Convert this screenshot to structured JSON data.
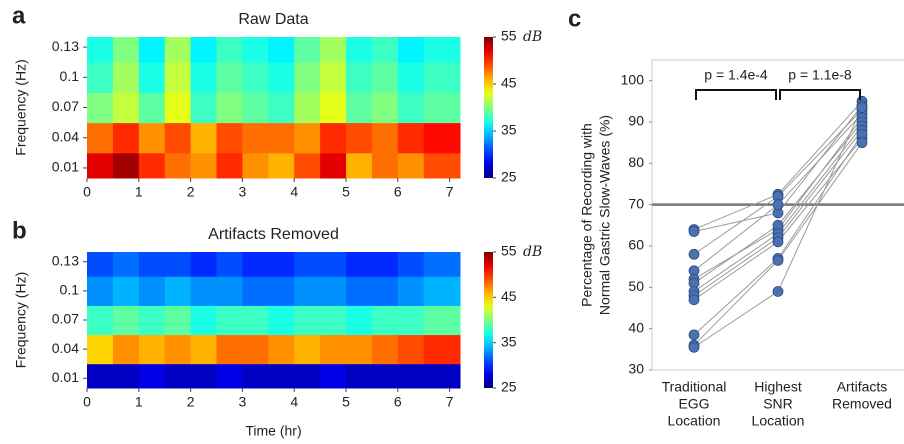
{
  "chart_data": [
    {
      "type": "heatmap",
      "panel": "a",
      "title": "Raw Data",
      "ylabel": "Frequency (Hz)",
      "x": [
        0.25,
        0.75,
        1.25,
        1.75,
        2.25,
        2.75,
        3.25,
        3.75,
        4.25,
        4.75,
        5.25,
        5.75,
        6.25,
        6.75
      ],
      "y": [
        0.01,
        0.04,
        0.07,
        0.1,
        0.13
      ],
      "values": [
        [
          52,
          54,
          50,
          48,
          47,
          50,
          47,
          46,
          49,
          52,
          46,
          48,
          47,
          49
        ],
        [
          48,
          50,
          47,
          49,
          46,
          49,
          48,
          48,
          47,
          50,
          49,
          48,
          50,
          51
        ],
        [
          40,
          42,
          39,
          43,
          38,
          40,
          39,
          38,
          41,
          43,
          39,
          40,
          38,
          39
        ],
        [
          38,
          41,
          37,
          42,
          37,
          39,
          38,
          37,
          40,
          42,
          38,
          39,
          37,
          38
        ],
        [
          37,
          40,
          36,
          41,
          36,
          38,
          37,
          36,
          39,
          41,
          37,
          38,
          36,
          37
        ]
      ],
      "xlim": [
        0,
        7.2
      ],
      "xticks": [
        0,
        1,
        2,
        3,
        4,
        5,
        6,
        7
      ],
      "ylim": [
        0,
        0.14
      ],
      "yticks": [
        0.01,
        0.04,
        0.07,
        0.1,
        0.13
      ],
      "clim": [
        25,
        55
      ],
      "cticks": [
        25,
        35,
        45,
        55
      ],
      "cunit": "dB",
      "colormap": "jet"
    },
    {
      "type": "heatmap",
      "panel": "b",
      "title": "Artifacts Removed",
      "ylabel": "Frequency (Hz)",
      "xlabel": "Time (hr)",
      "x": [
        0.25,
        0.75,
        1.25,
        1.75,
        2.25,
        2.75,
        3.25,
        3.75,
        4.25,
        4.75,
        5.25,
        5.75,
        6.25,
        6.75
      ],
      "y": [
        0.01,
        0.04,
        0.07,
        0.1,
        0.13
      ],
      "values": [
        [
          27,
          27,
          28,
          27,
          27,
          28,
          27,
          27,
          27,
          28,
          27,
          27,
          27,
          27
        ],
        [
          45,
          47,
          46,
          47,
          46,
          48,
          48,
          47,
          46,
          47,
          47,
          48,
          49,
          50
        ],
        [
          38,
          39,
          38,
          39,
          37,
          38,
          38,
          37,
          38,
          38,
          37,
          38,
          38,
          39
        ],
        [
          33,
          34,
          33,
          34,
          33,
          33,
          32,
          32,
          33,
          33,
          32,
          32,
          33,
          34
        ],
        [
          31,
          32,
          31,
          31,
          30,
          31,
          30,
          30,
          31,
          31,
          30,
          30,
          31,
          32
        ]
      ],
      "xlim": [
        0,
        7.2
      ],
      "xticks": [
        0,
        1,
        2,
        3,
        4,
        5,
        6,
        7
      ],
      "ylim": [
        0,
        0.14
      ],
      "yticks": [
        0.01,
        0.04,
        0.07,
        0.1,
        0.13
      ],
      "clim": [
        25,
        55
      ],
      "cticks": [
        25,
        35,
        45,
        55
      ],
      "cunit": "dB",
      "colormap": "jet"
    },
    {
      "type": "paired-dot",
      "panel": "c",
      "ylabel": [
        "Percentage of Recording with",
        "Normal Gastric Slow-Waves (%)"
      ],
      "categories": [
        [
          "Traditional",
          "EGG",
          "Location"
        ],
        [
          "Highest",
          "SNR",
          "Location"
        ],
        [
          "Artifacts",
          "Removed"
        ]
      ],
      "series": [
        {
          "values": [
            64,
            72.5,
            95
          ]
        },
        {
          "values": [
            63.5,
            68,
            94
          ]
        },
        {
          "values": [
            58,
            72,
            93
          ]
        },
        {
          "values": [
            54,
            70,
            92
          ]
        },
        {
          "values": [
            52,
            64,
            91
          ]
        },
        {
          "values": [
            51,
            65,
            90
          ]
        },
        {
          "values": [
            49,
            63,
            89
          ]
        },
        {
          "values": [
            48,
            62,
            88
          ]
        },
        {
          "values": [
            47,
            61,
            86
          ]
        },
        {
          "values": [
            38.5,
            57,
            87
          ]
        },
        {
          "values": [
            36,
            56.5,
            85
          ]
        },
        {
          "values": [
            35.5,
            49,
            93.5
          ]
        }
      ],
      "color": "#4a72b0",
      "line_color": "#9a9a9a",
      "hline": 70,
      "ylim": [
        30,
        105
      ],
      "yticks": [
        30,
        40,
        50,
        60,
        70,
        80,
        90,
        100
      ],
      "annotations": [
        "p = 1.4e-4",
        "p = 1.1e-8"
      ]
    }
  ]
}
